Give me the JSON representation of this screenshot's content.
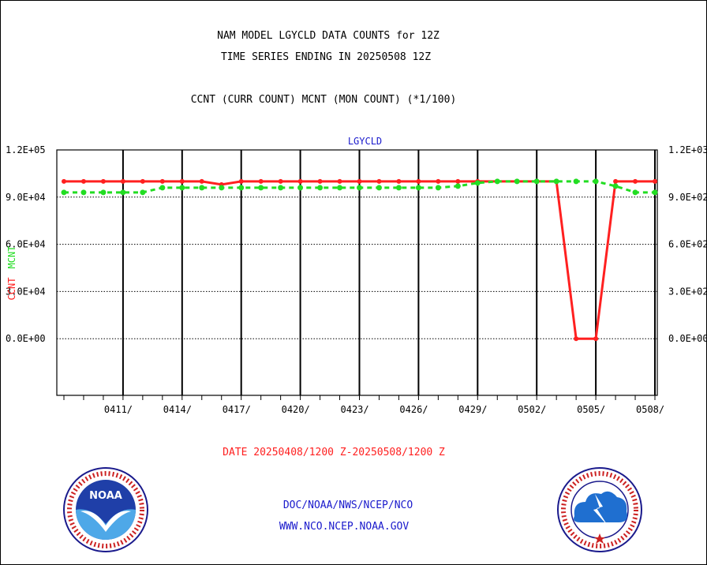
{
  "header": {
    "line1": "NAM MODEL LGYCLD DATA COUNTS for 12Z",
    "line2": "TIME SERIES ENDING IN 20250508 12Z",
    "line3": "CCNT (CURR COUNT) MCNT (MON COUNT) (*1/100)"
  },
  "footer": {
    "date_range": "DATE 20250408/1200 Z-20250508/1200 Z",
    "org": "DOC/NOAA/NWS/NCEP/NCO",
    "url": "WWW.NCO.NCEP.NOAA.GOV"
  },
  "colors": {
    "ccnt": "#ff2020",
    "mcnt": "#22dd22",
    "title": "#1a1acc",
    "axis": "#000000"
  },
  "logos": {
    "left": "noaa-logo",
    "right": "national-weather-service-logo"
  },
  "chart_data": {
    "type": "line",
    "title": "LGYCLD",
    "left_axis": {
      "label_ccnt": "CCNT",
      "label_mcnt": "MCNT",
      "ticks": [
        "1.2E+05",
        "9.0E+04",
        "6.0E+04",
        "3.0E+04",
        "0.0E+00"
      ],
      "ylim": [
        -36000,
        120000
      ]
    },
    "right_axis": {
      "ticks": [
        "1.2E+03",
        "9.0E+02",
        "6.0E+02",
        "3.0E+02",
        "0.0E+00"
      ],
      "ylim": [
        -360,
        1200
      ]
    },
    "x_ticks": [
      "0411/",
      "0414/",
      "0417/",
      "0420/",
      "0423/",
      "0426/",
      "0429/",
      "0502/",
      "0505/",
      "0508/"
    ],
    "xlim": [
      0,
      30
    ],
    "x": [
      0,
      1,
      2,
      3,
      4,
      5,
      6,
      7,
      8,
      9,
      10,
      11,
      12,
      13,
      14,
      15,
      16,
      17,
      18,
      19,
      20,
      21,
      22,
      23,
      24,
      25,
      26,
      27,
      28,
      29,
      30
    ],
    "series": [
      {
        "name": "CCNT",
        "style": "solid",
        "axis": "left",
        "values": [
          100000,
          100000,
          100000,
          100000,
          100000,
          100000,
          100000,
          100000,
          98000,
          100000,
          100000,
          100000,
          100000,
          100000,
          100000,
          100000,
          100000,
          100000,
          100000,
          100000,
          100000,
          100000,
          100000,
          100000,
          100000,
          100000,
          0,
          0,
          100000,
          100000,
          100000
        ]
      },
      {
        "name": "MCNT",
        "style": "dashed",
        "axis": "right",
        "values": [
          930,
          930,
          930,
          930,
          930,
          960,
          960,
          960,
          960,
          960,
          960,
          960,
          960,
          960,
          960,
          960,
          960,
          960,
          960,
          960,
          970,
          990,
          1000,
          1000,
          1000,
          1000,
          1000,
          1000,
          970,
          930,
          930
        ]
      }
    ]
  }
}
